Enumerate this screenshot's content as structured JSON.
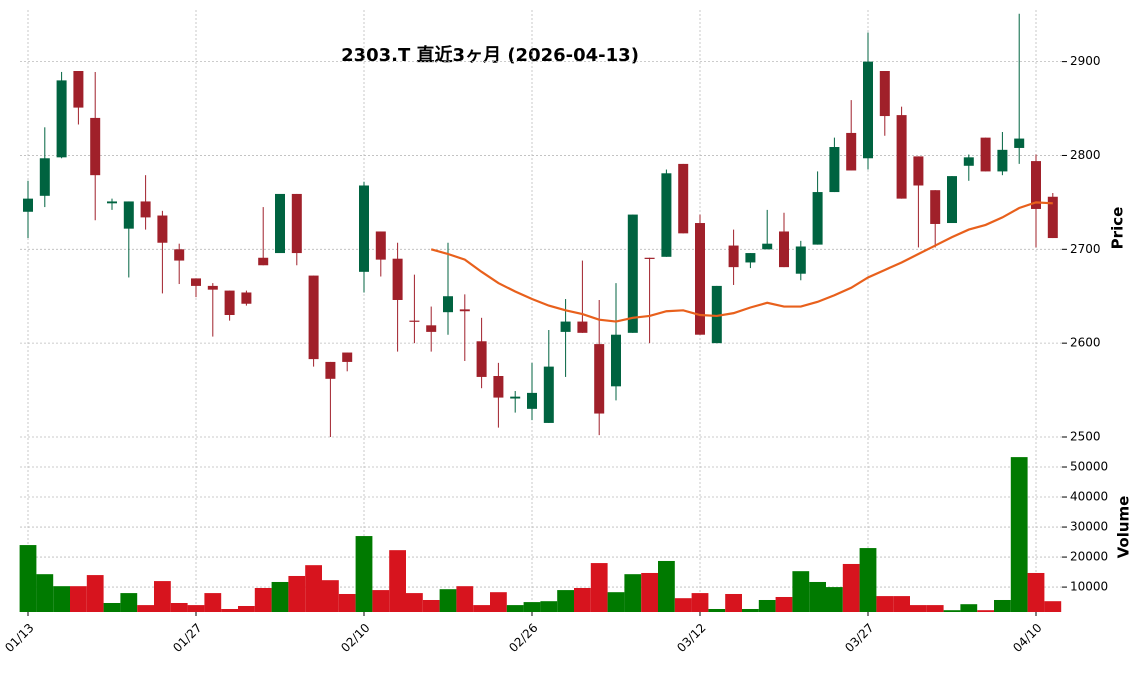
{
  "chart_data": {
    "type": "candlestick",
    "title": "2303.T  直近3ヶ月  (2026-04-13)",
    "ylabel": "Price",
    "categories": [
      "01/13",
      null,
      null,
      null,
      null,
      null,
      null,
      null,
      null,
      null,
      "01/27",
      null,
      null,
      null,
      null,
      null,
      null,
      null,
      null,
      null,
      "02/10",
      null,
      null,
      null,
      null,
      null,
      null,
      null,
      null,
      null,
      "02/26",
      null,
      null,
      null,
      null,
      null,
      null,
      null,
      null,
      null,
      "03/12",
      null,
      null,
      null,
      null,
      null,
      null,
      null,
      null,
      null,
      "03/27",
      null,
      null,
      null,
      null,
      null,
      null,
      null,
      null,
      null,
      "04/10",
      null
    ],
    "open": [
      2740,
      2757,
      2798,
      2890,
      2840,
      2749,
      2722,
      2751,
      2736,
      2700,
      2669,
      2661,
      2656,
      2654,
      2691,
      2696,
      2759,
      2672,
      2580,
      2590,
      2676,
      2719,
      2690,
      2624,
      2619,
      2633,
      2636,
      2602,
      2565,
      2541,
      2530,
      2515,
      2612,
      2623,
      2599,
      2554,
      2611,
      2691,
      2692,
      2791,
      2728,
      2600,
      2704,
      2686,
      2700,
      2719,
      2674,
      2705,
      2761,
      2824,
      2797,
      2890,
      2843,
      2799,
      2763,
      2728,
      2789,
      2819,
      2783,
      2808,
      2794,
      2756
    ],
    "high": [
      2773,
      2830,
      2889,
      2890,
      2889,
      2754,
      2751,
      2779,
      2741,
      2706,
      2669,
      2664,
      2656,
      2656,
      2745,
      2759,
      2759,
      2672,
      2580,
      2590,
      2772,
      2719,
      2707,
      2673,
      2639,
      2707,
      2652,
      2627,
      2579,
      2549,
      2579,
      2614,
      2647,
      2688,
      2646,
      2664,
      2737,
      2691,
      2785,
      2791,
      2737,
      2661,
      2721,
      2696,
      2742,
      2739,
      2709,
      2783,
      2819,
      2859,
      2931,
      2890,
      2852,
      2799,
      2763,
      2778,
      2801,
      2819,
      2825,
      2951,
      2801,
      2760
    ],
    "low": [
      2712,
      2745,
      2797,
      2833,
      2731,
      2742,
      2670,
      2721,
      2653,
      2663,
      2649,
      2607,
      2624,
      2640,
      2683,
      2696,
      2683,
      2575,
      2500,
      2570,
      2654,
      2671,
      2591,
      2600,
      2591,
      2609,
      2581,
      2552,
      2510,
      2526,
      2518,
      2515,
      2564,
      2611,
      2502,
      2539,
      2611,
      2600,
      2692,
      2717,
      2609,
      2600,
      2662,
      2680,
      2700,
      2681,
      2667,
      2705,
      2761,
      2784,
      2785,
      2821,
      2754,
      2702,
      2702,
      2728,
      2773,
      2783,
      2779,
      2791,
      2702,
      2712
    ],
    "close": [
      2754,
      2797,
      2880,
      2851,
      2779,
      2751,
      2751,
      2734,
      2707,
      2688,
      2661,
      2657,
      2630,
      2642,
      2683,
      2759,
      2696,
      2583,
      2562,
      2580,
      2768,
      2689,
      2646,
      2623,
      2612,
      2650,
      2634,
      2564,
      2542,
      2543,
      2547,
      2575,
      2623,
      2611,
      2525,
      2609,
      2737,
      2690,
      2781,
      2717,
      2609,
      2661,
      2681,
      2696,
      2706,
      2681,
      2703,
      2761,
      2809,
      2784,
      2900,
      2842,
      2754,
      2768,
      2727,
      2778,
      2798,
      2783,
      2806,
      2818,
      2743,
      2712
    ],
    "ma": {
      "color": "#e8601c",
      "values": [
        null,
        null,
        null,
        null,
        null,
        null,
        null,
        null,
        null,
        null,
        null,
        null,
        null,
        null,
        null,
        null,
        null,
        null,
        null,
        null,
        null,
        null,
        null,
        null,
        2700,
        2695,
        2689,
        2676,
        2664,
        2655,
        2647,
        2640,
        2635,
        2631,
        2625,
        2623,
        2627,
        2629,
        2634,
        2635,
        2630,
        2629,
        2632,
        2638,
        2643,
        2639,
        2639,
        2644,
        2651,
        2659,
        2670,
        2678,
        2686,
        2695,
        2704,
        2713,
        2721,
        2726,
        2734,
        2744,
        2750,
        2749
      ]
    },
    "up_color": "#006340",
    "down_color": "#a0202a",
    "ylim": [
      2500,
      2955
    ],
    "yticks": [
      2500,
      2600,
      2700,
      2800,
      2900
    ],
    "grid": true,
    "volume": {
      "label": "Volume",
      "up_color": "#007a00",
      "down_color": "#d7141e",
      "values": [
        24000,
        14300,
        10300,
        10300,
        14000,
        4700,
        8000,
        4000,
        12000,
        4700,
        4000,
        8000,
        2700,
        3700,
        9700,
        11700,
        13700,
        17300,
        12300,
        7700,
        27000,
        9000,
        22300,
        8000,
        5700,
        9300,
        10300,
        4000,
        8300,
        4000,
        5000,
        5300,
        9000,
        9700,
        18000,
        8300,
        14300,
        14700,
        18700,
        6300,
        8000,
        2700,
        7700,
        2700,
        5700,
        6700,
        15300,
        11700,
        10000,
        17700,
        23000,
        7000,
        7000,
        4000,
        4000,
        2300,
        4300,
        2300,
        5700,
        53300,
        14700,
        5300
      ],
      "ylim": [
        1700,
        60000
      ],
      "yticks": [
        10000,
        20000,
        30000,
        40000,
        50000
      ]
    }
  }
}
